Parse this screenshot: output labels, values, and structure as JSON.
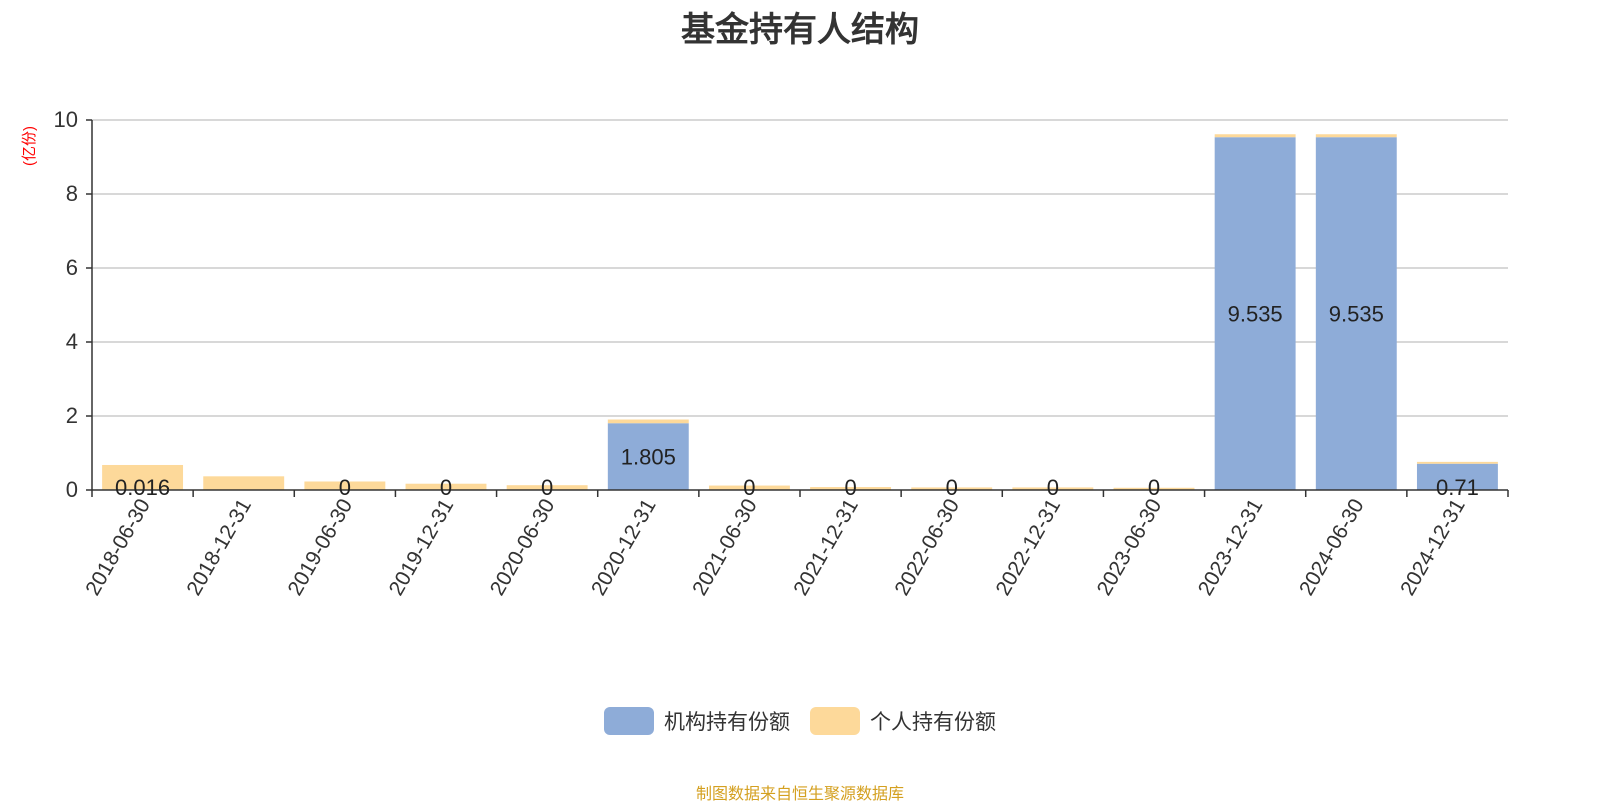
{
  "chart_data": {
    "type": "bar",
    "stacked": true,
    "title": "基金持有人结构",
    "ylabel": "(亿份)",
    "ylim": [
      0,
      10
    ],
    "yticks": [
      0,
      2,
      4,
      6,
      8,
      10
    ],
    "grid": true,
    "legend_position": "bottom",
    "categories": [
      "2018-06-30",
      "2018-12-31",
      "2019-06-30",
      "2019-12-31",
      "2020-06-30",
      "2020-12-31",
      "2021-06-30",
      "2021-12-31",
      "2022-06-30",
      "2022-12-31",
      "2023-06-30",
      "2023-12-31",
      "2024-06-30",
      "2024-12-31"
    ],
    "series": [
      {
        "name": "机构持有份额",
        "color": "#8eacd8",
        "values": [
          0.016,
          0,
          0,
          0,
          0,
          1.805,
          0,
          0,
          0,
          0,
          0,
          9.535,
          9.535,
          0.71
        ],
        "labels": [
          "0.016",
          "",
          "0",
          "0",
          "0",
          "1.805",
          "0",
          "0",
          "0",
          "0",
          "0",
          "9.535",
          "9.535",
          "0.71"
        ]
      },
      {
        "name": "个人持有份额",
        "color": "#fdd99a",
        "values": [
          0.66,
          0.37,
          0.23,
          0.17,
          0.13,
          0.1,
          0.12,
          0.08,
          0.07,
          0.07,
          0.06,
          0.08,
          0.08,
          0.05
        ]
      }
    ]
  },
  "source_note": "制图数据来自恒生聚源数据库"
}
